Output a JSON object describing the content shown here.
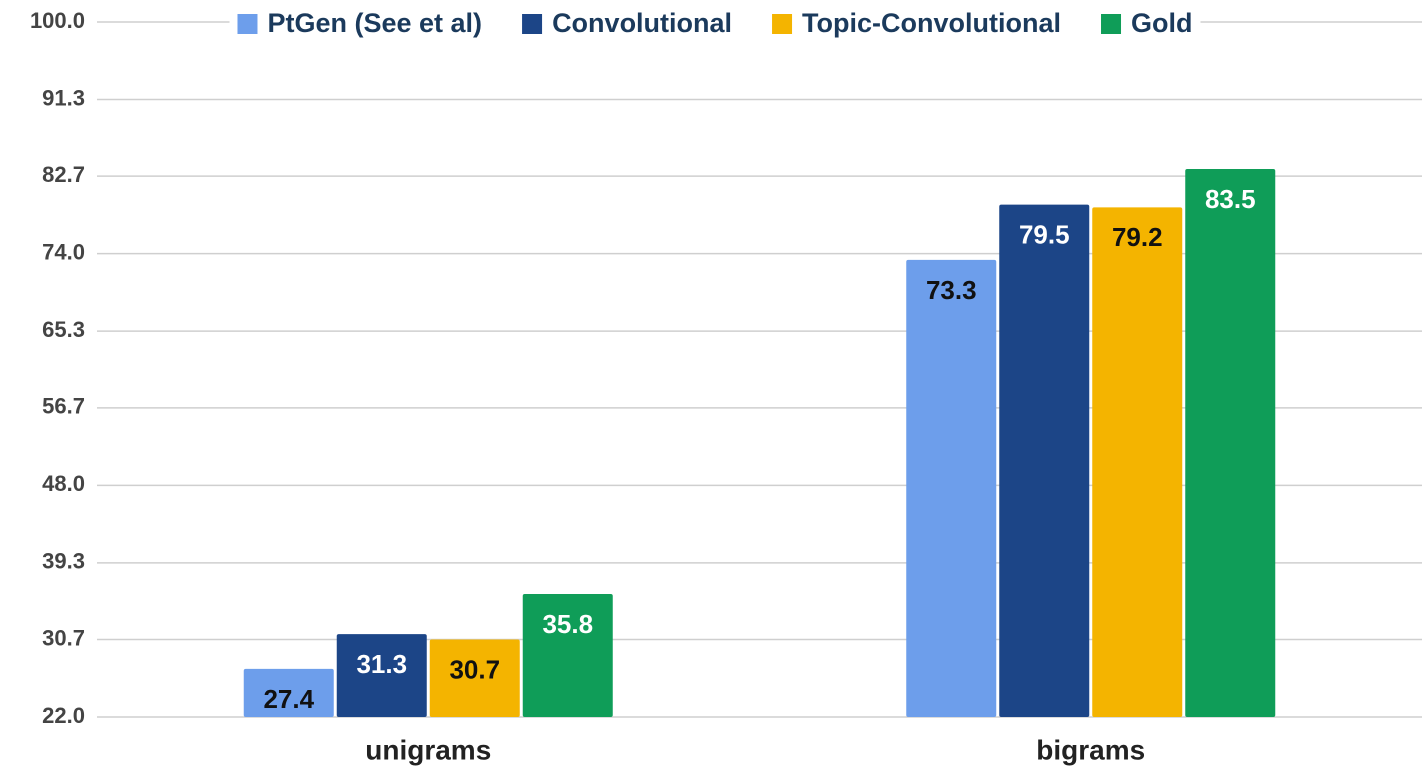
{
  "chart_data": {
    "type": "bar",
    "categories": [
      "unigrams",
      "bigrams"
    ],
    "series": [
      {
        "name": "PtGen (See et al)",
        "color": "#6d9eeb",
        "values": [
          27.4,
          73.3
        ]
      },
      {
        "name": "Convolutional",
        "color": "#1c4587",
        "values": [
          31.3,
          79.5
        ]
      },
      {
        "name": "Topic-Convolutional",
        "color": "#f4b400",
        "values": [
          30.7,
          79.2
        ]
      },
      {
        "name": "Gold",
        "color": "#0f9d58",
        "values": [
          35.8,
          83.5
        ]
      }
    ],
    "ylim": [
      22,
      100
    ],
    "yticks": [
      {
        "value": 22,
        "label": "22.0"
      },
      30.7,
      39.3,
      {
        "value": 48,
        "label": "48.0"
      },
      56.7,
      65.3,
      {
        "value": 74,
        "label": "74.0"
      },
      82.7,
      91.3,
      {
        "value": 100,
        "label": "100.0"
      }
    ],
    "grid": true,
    "legend": "top"
  }
}
